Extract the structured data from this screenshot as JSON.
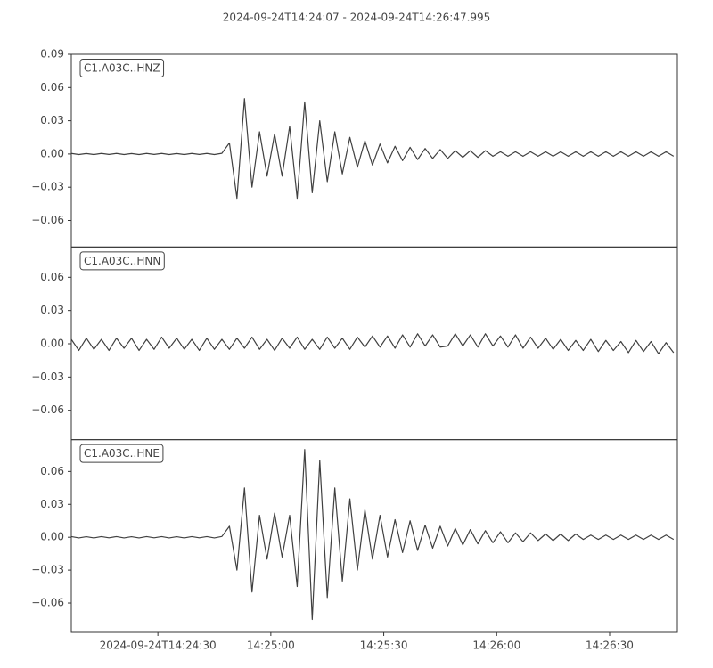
{
  "chart_data": {
    "type": "line",
    "title": "2024-09-24T14:24:07  -  2024-09-24T14:26:47.995",
    "xlim": [
      0,
      160.995
    ],
    "xticks": [
      {
        "value": 23,
        "label": "2024-09-24T14:24:30"
      },
      {
        "value": 53,
        "label": "14:25:00"
      },
      {
        "value": 83,
        "label": "14:25:30"
      },
      {
        "value": 113,
        "label": "14:26:00"
      },
      {
        "value": 143,
        "label": "14:26:30"
      }
    ],
    "x": [
      0,
      2,
      4,
      6,
      8,
      10,
      12,
      14,
      16,
      18,
      20,
      22,
      24,
      26,
      28,
      30,
      32,
      34,
      36,
      38,
      40,
      42,
      44,
      46,
      48,
      50,
      52,
      54,
      56,
      58,
      60,
      62,
      64,
      66,
      68,
      70,
      72,
      74,
      76,
      78,
      80,
      82,
      84,
      86,
      88,
      90,
      92,
      94,
      96,
      98,
      100,
      102,
      104,
      106,
      108,
      110,
      112,
      114,
      116,
      118,
      120,
      122,
      124,
      126,
      128,
      130,
      132,
      134,
      136,
      138,
      140,
      142,
      144,
      146,
      148,
      150,
      152,
      154,
      156,
      158,
      160
    ],
    "series": [
      {
        "name": "C1.A03C..HNZ",
        "color": "#404040",
        "ylim": [
          -0.084,
          0.09
        ],
        "yticks": [
          {
            "value": -0.06,
            "label": "−0.06"
          },
          {
            "value": -0.03,
            "label": "−0.03"
          },
          {
            "value": 0,
            "label": "0.00"
          },
          0.03,
          0.06,
          0.09
        ],
        "values": [
          0.0005,
          -0.0005,
          0.0004,
          -0.0005,
          0.0005,
          -0.0004,
          0.0005,
          -0.0005,
          0.0004,
          -0.0005,
          0.0005,
          -0.0004,
          0.0005,
          -0.0005,
          0.0004,
          -0.0005,
          0.0005,
          -0.0004,
          0.0005,
          -0.0005,
          0.0006,
          0.01,
          -0.04,
          0.05,
          -0.03,
          0.02,
          -0.02,
          0.018,
          -0.02,
          0.025,
          -0.04,
          0.047,
          -0.035,
          0.03,
          -0.025,
          0.02,
          -0.018,
          0.015,
          -0.012,
          0.012,
          -0.01,
          0.009,
          -0.008,
          0.007,
          -0.006,
          0.006,
          -0.005,
          0.005,
          -0.004,
          0.004,
          -0.004,
          0.003,
          -0.003,
          0.003,
          -0.003,
          0.003,
          -0.002,
          0.002,
          -0.002,
          0.002,
          -0.002,
          0.002,
          -0.002,
          0.002,
          -0.002,
          0.002,
          -0.002,
          0.002,
          -0.002,
          0.002,
          -0.002,
          0.002,
          -0.002,
          0.002,
          -0.002,
          0.002,
          -0.002,
          0.002,
          -0.002,
          0.002,
          -0.002
        ]
      },
      {
        "name": "C1.A03C..HNN",
        "color": "#404040",
        "ylim": [
          -0.0865,
          0.0873
        ],
        "yticks": [
          {
            "value": -0.06,
            "label": "−0.06"
          },
          {
            "value": -0.03,
            "label": "−0.03"
          },
          {
            "value": 0,
            "label": "0.00"
          },
          0.03,
          0.06
        ],
        "values": [
          0.004,
          -0.006,
          0.005,
          -0.005,
          0.004,
          -0.006,
          0.005,
          -0.004,
          0.005,
          -0.006,
          0.004,
          -0.005,
          0.006,
          -0.004,
          0.005,
          -0.005,
          0.004,
          -0.006,
          0.005,
          -0.005,
          0.004,
          -0.005,
          0.005,
          -0.004,
          0.006,
          -0.005,
          0.004,
          -0.006,
          0.005,
          -0.004,
          0.006,
          -0.005,
          0.004,
          -0.005,
          0.006,
          -0.004,
          0.005,
          -0.005,
          0.006,
          -0.003,
          0.007,
          -0.003,
          0.007,
          -0.004,
          0.008,
          -0.003,
          0.009,
          -0.002,
          0.008,
          -0.003,
          -0.002,
          0.009,
          -0.002,
          0.008,
          -0.003,
          0.009,
          -0.002,
          0.007,
          -0.003,
          0.008,
          -0.004,
          0.006,
          -0.004,
          0.005,
          -0.005,
          0.004,
          -0.006,
          0.003,
          -0.006,
          0.004,
          -0.007,
          0.003,
          -0.006,
          0.002,
          -0.008,
          0.003,
          -0.007,
          0.002,
          -0.009,
          0.001,
          -0.008
        ]
      },
      {
        "name": "C1.A03C..HNE",
        "color": "#404040",
        "ylim": [
          -0.0868,
          0.089
        ],
        "yticks": [
          {
            "value": -0.06,
            "label": "−0.06"
          },
          {
            "value": -0.03,
            "label": "−0.03"
          },
          {
            "value": 0,
            "label": "0.00"
          },
          0.03,
          0.06
        ],
        "values": [
          0.0006,
          -0.0006,
          0.0005,
          -0.0006,
          0.0006,
          -0.0005,
          0.0006,
          -0.0006,
          0.0005,
          -0.0006,
          0.0006,
          -0.0005,
          0.0006,
          -0.0006,
          0.0005,
          -0.0006,
          0.0006,
          -0.0005,
          0.0006,
          -0.0006,
          0.0007,
          0.01,
          -0.03,
          0.045,
          -0.05,
          0.02,
          -0.02,
          0.022,
          -0.018,
          0.02,
          -0.045,
          0.08,
          -0.075,
          0.07,
          -0.055,
          0.045,
          -0.04,
          0.035,
          -0.03,
          0.025,
          -0.02,
          0.02,
          -0.018,
          0.016,
          -0.014,
          0.015,
          -0.012,
          0.011,
          -0.01,
          0.01,
          -0.008,
          0.008,
          -0.007,
          0.007,
          -0.006,
          0.006,
          -0.005,
          0.005,
          -0.005,
          0.004,
          -0.004,
          0.004,
          -0.003,
          0.003,
          -0.003,
          0.003,
          -0.003,
          0.003,
          -0.002,
          0.002,
          -0.002,
          0.002,
          -0.002,
          0.002,
          -0.002,
          0.002,
          -0.002,
          0.002,
          -0.002,
          0.002,
          -0.002
        ]
      }
    ]
  }
}
